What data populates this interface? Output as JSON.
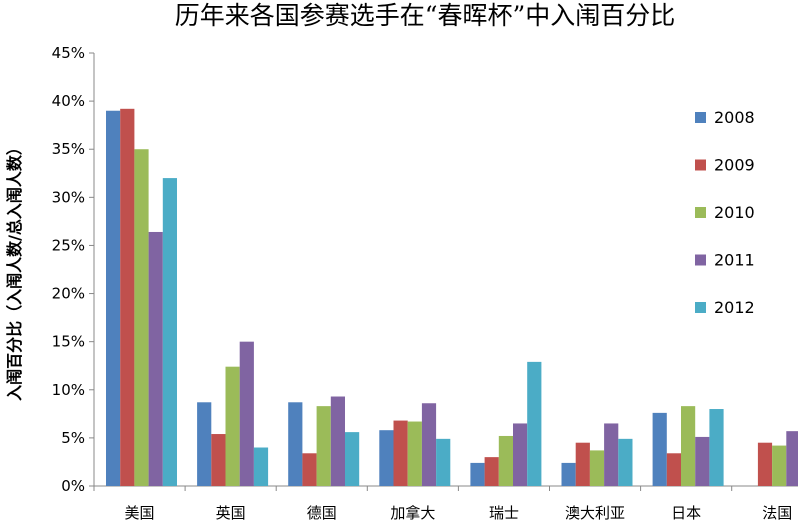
{
  "chart_data": {
    "type": "bar",
    "title": "历年来各国参赛选手在“春晖杯”中入闱百分比",
    "xlabel": "",
    "ylabel": "入闱百分比（入闱人数/总入闱人数）",
    "ylim": [
      0,
      45
    ],
    "yticks": [
      "0%",
      "5%",
      "10%",
      "15%",
      "20%",
      "25%",
      "30%",
      "35%",
      "40%",
      "45%"
    ],
    "grid": false,
    "legend": "right",
    "categories": [
      "美国",
      "英国",
      "德国",
      "加拿大",
      "瑞士",
      "澳大利亚",
      "日本",
      "法国"
    ],
    "series": [
      {
        "name": "2008",
        "color": "#4F81BD",
        "values": [
          39.0,
          8.7,
          8.7,
          5.8,
          2.4,
          2.4,
          7.6,
          0
        ]
      },
      {
        "name": "2009",
        "color": "#C0504D",
        "values": [
          39.2,
          5.4,
          3.4,
          6.8,
          3.0,
          4.5,
          3.4,
          4.5
        ]
      },
      {
        "name": "2010",
        "color": "#9BBB59",
        "values": [
          35.0,
          12.4,
          8.3,
          6.7,
          5.2,
          3.7,
          8.3,
          4.2
        ]
      },
      {
        "name": "2011",
        "color": "#8064A2",
        "values": [
          26.4,
          15.0,
          9.3,
          8.6,
          6.5,
          6.5,
          5.1,
          5.7
        ]
      },
      {
        "name": "2012",
        "color": "#4BACC6",
        "values": [
          32.0,
          4.0,
          5.6,
          4.9,
          12.9,
          4.9,
          8.0,
          0
        ]
      }
    ]
  }
}
